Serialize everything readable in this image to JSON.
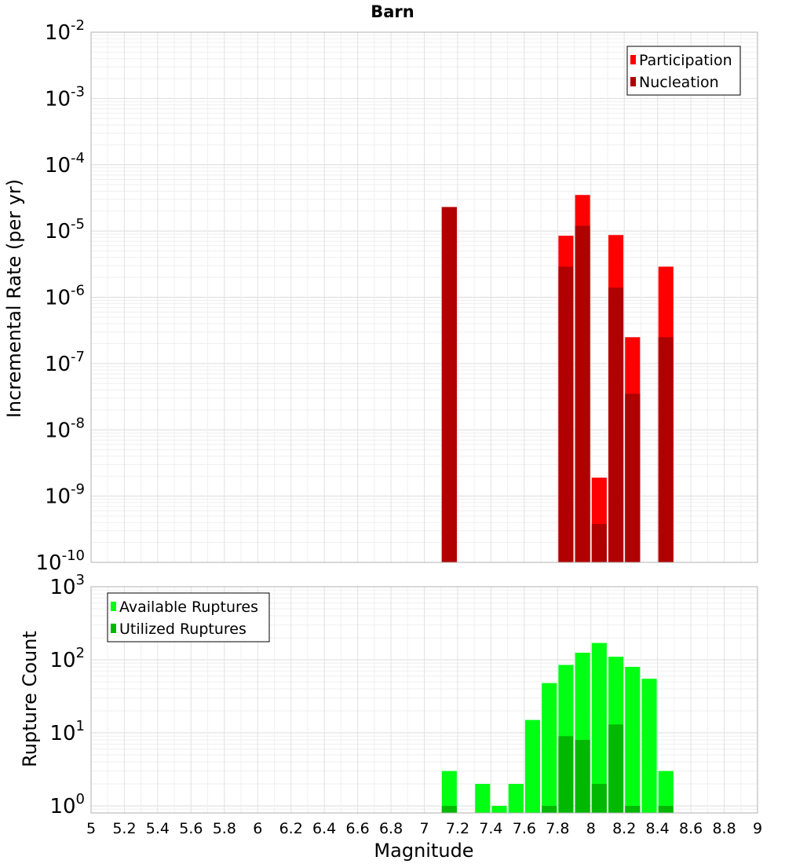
{
  "chart_data": [
    {
      "type": "bar",
      "title": "Barn",
      "ylabel": "Incremental Rate (per yr)",
      "yscale": "log",
      "ylim": [
        1e-10,
        0.01
      ],
      "y_tick_exponents": [
        "-2",
        "-3",
        "-4",
        "-5",
        "-6",
        "-7",
        "-8",
        "-9",
        "-10"
      ],
      "grid": true,
      "legend_position": "top-right",
      "bar_width": 0.09,
      "series": [
        {
          "name": "Participation",
          "color": "#ff0000",
          "x": [
            7.15,
            7.85,
            7.95,
            8.05,
            8.15,
            8.25,
            8.45
          ],
          "values": [
            2.3e-05,
            8.5e-06,
            3.5e-05,
            1.9e-09,
            8.7e-06,
            2.5e-07,
            2.9e-06
          ]
        },
        {
          "name": "Nucleation",
          "color": "#b00000",
          "x": [
            7.15,
            7.85,
            7.95,
            8.05,
            8.15,
            8.25,
            8.45
          ],
          "values": [
            2.3e-05,
            2.9e-06,
            1.2e-05,
            3.8e-10,
            1.4e-06,
            3.5e-08,
            2.5e-07
          ]
        }
      ]
    },
    {
      "type": "bar",
      "title": "",
      "xlabel": "Magnitude",
      "ylabel": "Rupture Count",
      "xlim": [
        5,
        9
      ],
      "x_ticks": [
        "5",
        "5.2",
        "5.4",
        "5.6",
        "5.8",
        "6",
        "6.2",
        "6.4",
        "6.6",
        "6.8",
        "7",
        "7.2",
        "7.4",
        "7.6",
        "7.8",
        "8",
        "8.2",
        "8.4",
        "8.6",
        "8.8",
        "9"
      ],
      "yscale": "log",
      "ylim": [
        0.8,
        1000
      ],
      "y_tick_exponents": [
        "3",
        "2",
        "1",
        "0"
      ],
      "grid": true,
      "legend_position": "top-left",
      "bar_width": 0.09,
      "series": [
        {
          "name": "Available Ruptures",
          "color": "#00ff12",
          "x": [
            7.15,
            7.35,
            7.45,
            7.55,
            7.65,
            7.75,
            7.85,
            7.95,
            8.05,
            8.15,
            8.25,
            8.35,
            8.45
          ],
          "values": [
            3,
            2,
            1,
            2,
            15,
            48,
            85,
            125,
            170,
            110,
            80,
            55,
            3
          ]
        },
        {
          "name": "Utilized Ruptures",
          "color": "#00b800",
          "x": [
            7.15,
            7.75,
            7.85,
            7.95,
            8.05,
            8.15,
            8.25,
            8.45
          ],
          "values": [
            1,
            1,
            9,
            8,
            2,
            13,
            1,
            1
          ]
        }
      ]
    }
  ]
}
